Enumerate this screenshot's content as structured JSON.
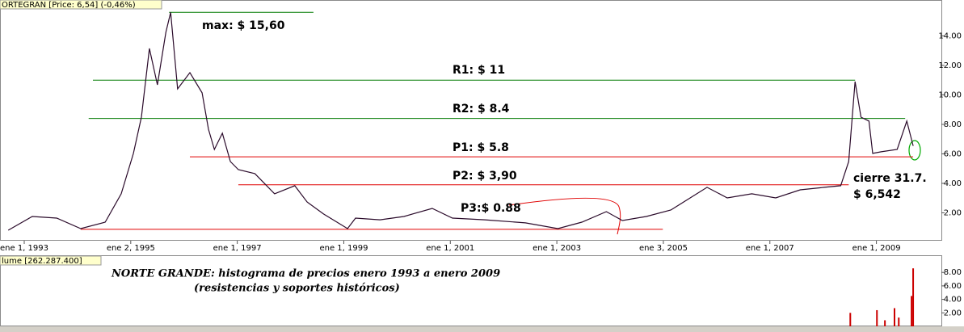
{
  "chart_data": [
    {
      "type": "line",
      "title": "ORTEGRAN [Price: 6,54] (-0,46%)",
      "color": "#2a0a2a",
      "x": [
        1992.7,
        1993.15,
        1993.61,
        1994.06,
        1994.52,
        1994.82,
        1995.05,
        1995.2,
        1995.35,
        1995.5,
        1995.66,
        1995.75,
        1995.88,
        1996.11,
        1996.34,
        1996.46,
        1996.57,
        1996.72,
        1996.87,
        1997.02,
        1997.33,
        1997.7,
        1998.08,
        1998.31,
        1998.62,
        1999.07,
        1999.22,
        1999.68,
        2000.13,
        2000.66,
        2001.04,
        2001.65,
        2002.41,
        2003.02,
        2003.47,
        2003.93,
        2004.23,
        2004.68,
        2005.14,
        2005.82,
        2006.2,
        2006.66,
        2007.11,
        2007.57,
        2008.02,
        2008.33,
        2008.48,
        2008.6,
        2008.71,
        2008.86,
        2008.93,
        2009.09,
        2009.39,
        2009.57,
        2009.69
      ],
      "values": [
        0.82,
        1.75,
        1.64,
        0.93,
        1.37,
        3.29,
        6.03,
        8.49,
        13.15,
        10.68,
        14.25,
        15.6,
        10.41,
        11.51,
        10.14,
        7.67,
        6.3,
        7.4,
        5.48,
        4.93,
        4.66,
        3.29,
        3.84,
        2.74,
        1.92,
        0.93,
        1.64,
        1.53,
        1.75,
        2.3,
        1.64,
        1.53,
        1.32,
        0.93,
        1.37,
        2.08,
        1.48,
        1.75,
        2.19,
        3.73,
        3.01,
        3.29,
        3.01,
        3.56,
        3.73,
        3.84,
        5.48,
        10.9,
        8.49,
        8.22,
        6.03,
        6.14,
        6.3,
        8.22,
        6.54
      ],
      "xlim": [
        1992.545,
        2010.22
      ],
      "xticks": [
        {
          "value": 1993,
          "label": "ene 1, 1993"
        },
        {
          "value": 1995,
          "label": "ene 2, 1995"
        },
        {
          "value": 1997,
          "label": "ene 1, 1997"
        },
        {
          "value": 1999,
          "label": "ene 1, 1999"
        },
        {
          "value": 2001,
          "label": "ene 1, 2001"
        },
        {
          "value": 2003,
          "label": "ene 1, 2003"
        },
        {
          "value": 2005,
          "label": "ene 3, 2005"
        },
        {
          "value": 2007,
          "label": "ene 1, 2007"
        },
        {
          "value": 2009,
          "label": "ene 1, 2009"
        }
      ],
      "ylim": [
        0.3,
        16.2
      ],
      "yticks": [
        {
          "value": 2,
          "label": "2.00"
        },
        {
          "value": 4,
          "label": "4.00"
        },
        {
          "value": 6,
          "label": "6.00"
        },
        {
          "value": 8,
          "label": "8.00"
        },
        {
          "value": 10,
          "label": "10.00"
        },
        {
          "value": 12,
          "label": "12.00"
        },
        {
          "value": 14,
          "label": "14.00"
        }
      ],
      "annotations": [
        {
          "text": "max: $ 15,60",
          "value": 15.6,
          "x0": 1995.72,
          "x1": 1998.43,
          "color": "#007a00"
        },
        {
          "text": "R1: $ 11",
          "value": 11,
          "x0": 1994.29,
          "x1": 2008.6,
          "color": "#007a00"
        },
        {
          "text": "R2: $ 8.4",
          "value": 8.4,
          "x0": 1994.21,
          "x1": 2009.54,
          "color": "#007a00"
        },
        {
          "text": "P1: $ 5.8",
          "value": 5.8,
          "x0": 1996.11,
          "x1": 2009.69,
          "color": "#e00000"
        },
        {
          "text": "P2: $ 3,90",
          "value": 3.9,
          "x0": 1997.02,
          "x1": 2008.48,
          "color": "#e00000"
        },
        {
          "text": "P3:$ 0.88",
          "value": 0.88,
          "x0": 1994.06,
          "x1": 2004.99,
          "color": "#e00000"
        }
      ],
      "notes": [
        "cierre 31.7.",
        "$ 6,542"
      ]
    },
    {
      "type": "bar",
      "title": "lume [262.287.400]",
      "caption": [
        "NORTE GRANDE: histograma de precios enero 1993 a enero 2009",
        "(resistencias y soportes históricos)"
      ],
      "color": "#cc0000",
      "x": [
        2008.51,
        2009.01,
        2009.16,
        2009.34,
        2009.42,
        2009.66,
        2009.69
      ],
      "values": [
        2.0,
        2.4,
        0.9,
        2.7,
        1.3,
        4.5,
        8.6
      ],
      "ylim": [
        0,
        10.3
      ],
      "yticks": [
        {
          "value": 2,
          "label": "2.00"
        },
        {
          "value": 4,
          "label": "4.00"
        },
        {
          "value": 6,
          "label": "6.00"
        },
        {
          "value": 8,
          "label": "8.00"
        }
      ]
    }
  ]
}
